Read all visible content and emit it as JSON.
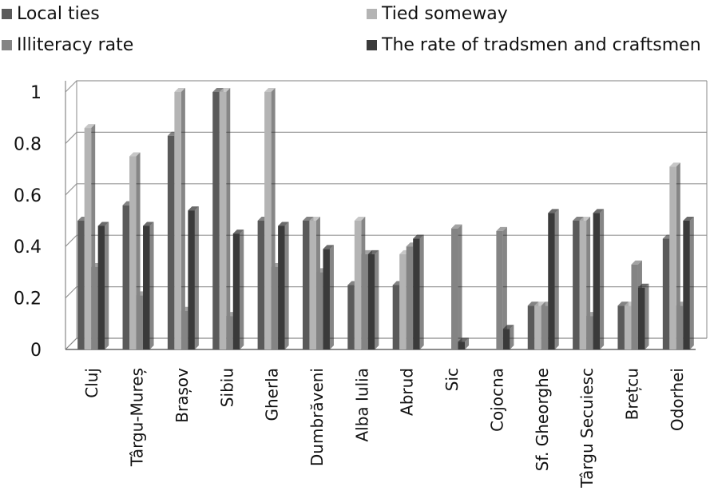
{
  "chart_data": {
    "type": "bar",
    "title": "",
    "xlabel": "",
    "ylabel": "",
    "ylim": [
      0,
      1
    ],
    "yticks": [
      "0",
      "0.2",
      "0.4",
      "0.6",
      "0.8",
      "1"
    ],
    "grid": true,
    "legend_position": "top",
    "categories": [
      "Cluj",
      "Târgu-Mureș",
      "Brașov",
      "Sibiu",
      "Gherla",
      "Dumbrăveni",
      "Alba Iulia",
      "Abrud",
      "Sic",
      "Cojocna",
      "Sf. Gheorghe",
      "Târgu Secuiesc",
      "Brețcu",
      "Odorhei"
    ],
    "series": [
      {
        "name": "Local ties",
        "color": "#5a5a5a",
        "values": [
          0.5,
          0.56,
          0.83,
          1.0,
          0.5,
          0.5,
          0.25,
          0.25,
          0.0,
          0.0,
          0.17,
          0.5,
          0.17,
          0.43
        ]
      },
      {
        "name": "Tied someway",
        "color": "#b4b4b4",
        "values": [
          0.86,
          0.75,
          1.0,
          1.0,
          1.0,
          0.5,
          0.5,
          0.37,
          0.0,
          0.0,
          0.17,
          0.5,
          0.17,
          0.71
        ]
      },
      {
        "name": "Illiteracy rate",
        "color": "#848484",
        "values": [
          0.32,
          0.21,
          0.15,
          0.13,
          0.32,
          0.3,
          0.37,
          0.4,
          0.47,
          0.46,
          0.17,
          0.13,
          0.33,
          0.17
        ]
      },
      {
        "name": "The rate of tradsmen and craftsmen",
        "color": "#3a3a3a",
        "values": [
          0.48,
          0.48,
          0.54,
          0.45,
          0.48,
          0.39,
          0.37,
          0.43,
          0.03,
          0.08,
          0.53,
          0.53,
          0.24,
          0.5
        ]
      }
    ]
  }
}
